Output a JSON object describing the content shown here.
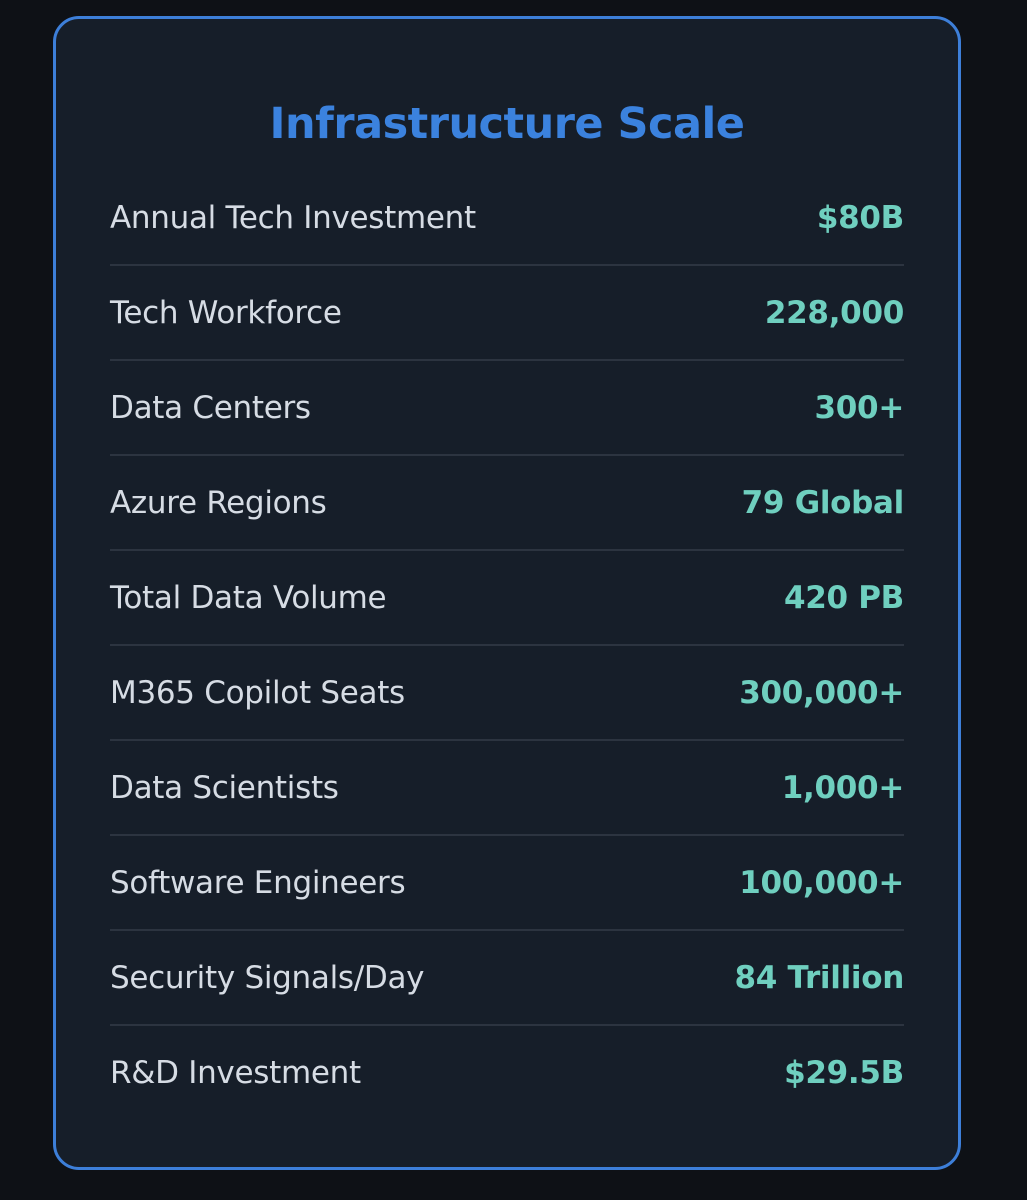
{
  "card": {
    "title": "Infrastructure Scale",
    "metrics": [
      {
        "label": "Annual Tech Investment",
        "value": "$80B"
      },
      {
        "label": "Tech Workforce",
        "value": "228,000"
      },
      {
        "label": "Data Centers",
        "value": "300+"
      },
      {
        "label": "Azure Regions",
        "value": "79 Global"
      },
      {
        "label": "Total Data Volume",
        "value": "420 PB"
      },
      {
        "label": "M365 Copilot Seats",
        "value": "300,000+"
      },
      {
        "label": "Data Scientists",
        "value": "1,000+"
      },
      {
        "label": "Software Engineers",
        "value": "100,000+"
      },
      {
        "label": "Security Signals/Day",
        "value": "84 Trillion"
      },
      {
        "label": "R&D Investment",
        "value": "$29.5B"
      }
    ]
  },
  "colors": {
    "background": "#0e1116",
    "card_background": "#161e29",
    "card_border": "#3d7fd9",
    "title": "#3b82de",
    "label": "#d6dce4",
    "value": "#6fcfbf",
    "divider": "#2c3440"
  }
}
